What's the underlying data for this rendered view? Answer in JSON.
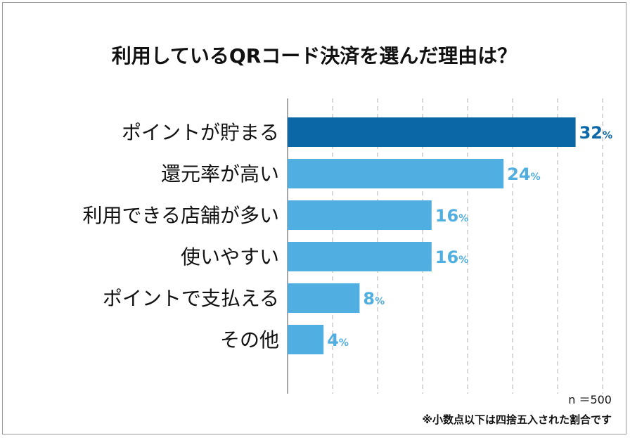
{
  "chart_data": {
    "type": "bar",
    "orientation": "horizontal",
    "title": "利用しているQRコード決済を選んだ理由は？",
    "categories": [
      "ポイントが貯まる",
      "還元率が高い",
      "利用できる店舗が多い",
      "使いやすい",
      "ポイントで支払える",
      "その他"
    ],
    "values": [
      32,
      24,
      16,
      16,
      8,
      4
    ],
    "value_labels": [
      "32",
      "24",
      "16",
      "16",
      "8",
      "4"
    ],
    "unit": "%",
    "xlim": [
      0,
      35
    ],
    "gridlines": [
      5,
      10,
      15,
      20,
      25,
      30,
      35
    ],
    "highlight_index": 0,
    "colors": {
      "highlight": "#0b67a6",
      "normal": "#51aee0",
      "highlight_text": "#0b67a6",
      "normal_text": "#51aee0",
      "grid": "#b0b0b0",
      "axis": "#888888"
    }
  },
  "notes": {
    "sample_size": "n ＝500",
    "footnote": "※小数点以下は四捨五入された割合です"
  }
}
